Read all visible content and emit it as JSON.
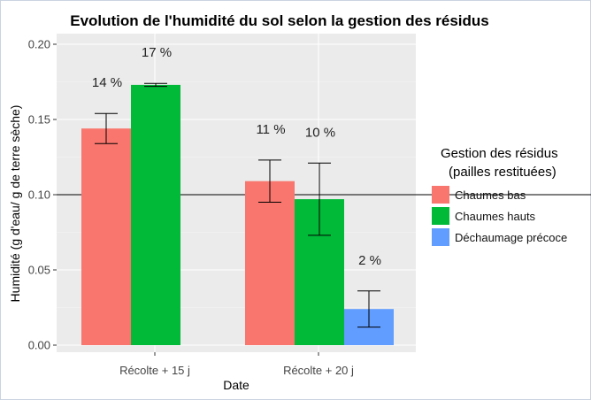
{
  "chart_data": {
    "type": "bar",
    "title": "Evolution de l'humidité du sol selon la gestion des résidus",
    "xlabel": "Date",
    "ylabel": "Humidité (g d'eau/ g de terre sèche)",
    "categories": [
      "Récolte + 15 j",
      "Récolte + 20 j"
    ],
    "ylim": [
      0,
      0.2
    ],
    "yticks": [
      "0.00",
      "0.05",
      "0.10",
      "0.15",
      "0.20"
    ],
    "yticks_values": [
      0,
      0.05,
      0.1,
      0.15,
      0.2
    ],
    "reference_line": 0.1,
    "grid": true,
    "legend": {
      "title_line1": "Gestion des résidus",
      "title_line2": "(pailles restituées)",
      "position": "right"
    },
    "series": [
      {
        "name": "Chaumes bas",
        "color": "#F8766D",
        "values": [
          0.144,
          0.109
        ],
        "err_low": [
          0.134,
          0.095
        ],
        "err_high": [
          0.154,
          0.123
        ],
        "labels": [
          "14 %",
          "11 %"
        ]
      },
      {
        "name": "Chaumes hauts",
        "color": "#00BA38",
        "values": [
          0.173,
          0.097
        ],
        "err_low": [
          0.172,
          0.073
        ],
        "err_high": [
          0.174,
          0.121
        ],
        "labels": [
          "17 %",
          "10 %"
        ]
      },
      {
        "name": "Déchaumage précoce",
        "color": "#619CFF",
        "values": [
          null,
          0.024
        ],
        "err_low": [
          null,
          0.012
        ],
        "err_high": [
          null,
          0.036
        ],
        "labels": [
          null,
          "2 %"
        ]
      }
    ]
  }
}
